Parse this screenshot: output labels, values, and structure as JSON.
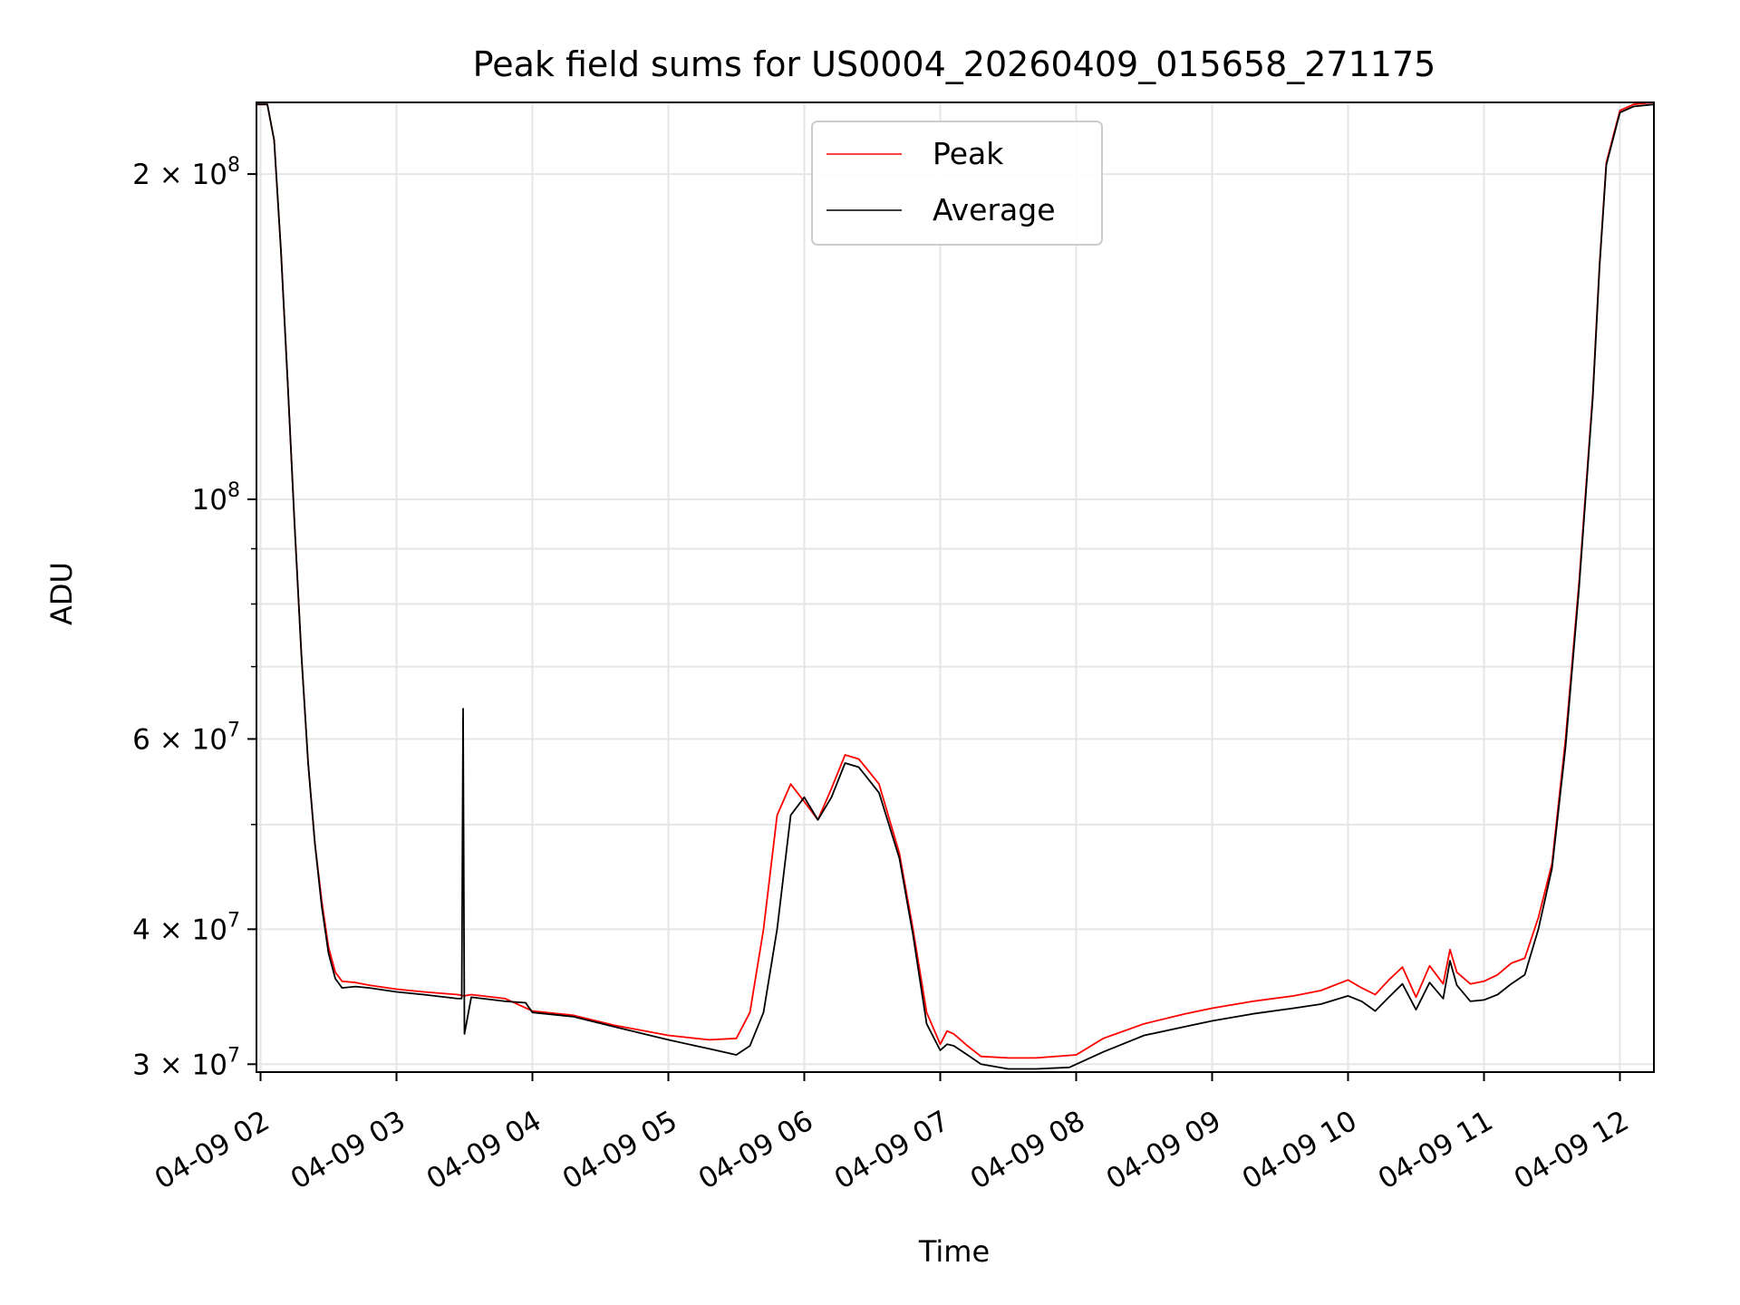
{
  "chart_data": {
    "type": "line",
    "title": "Peak field sums for US0004_20260409_015658_271175",
    "xlabel": "Time",
    "ylabel": "ADU",
    "yscale": "log",
    "xlim": [
      1.97,
      12.25
    ],
    "ylim": [
      29500000,
      233000000
    ],
    "x_ticks": [
      {
        "value": 2,
        "label": "04-09 02"
      },
      {
        "value": 3,
        "label": "04-09 03"
      },
      {
        "value": 4,
        "label": "04-09 04"
      },
      {
        "value": 5,
        "label": "04-09 05"
      },
      {
        "value": 6,
        "label": "04-09 06"
      },
      {
        "value": 7,
        "label": "04-09 07"
      },
      {
        "value": 8,
        "label": "04-09 08"
      },
      {
        "value": 9,
        "label": "04-09 09"
      },
      {
        "value": 10,
        "label": "04-09 10"
      },
      {
        "value": 11,
        "label": "04-09 11"
      },
      {
        "value": 12,
        "label": "04-09 12"
      }
    ],
    "y_ticks": [
      {
        "value": 30000000,
        "base": "3 × 10",
        "exp": "7"
      },
      {
        "value": 40000000,
        "base": "4 × 10",
        "exp": "7"
      },
      {
        "value": 60000000,
        "base": "6 × 10",
        "exp": "7"
      },
      {
        "value": 100000000,
        "base": "10",
        "exp": "8"
      },
      {
        "value": 200000000,
        "base": "2 × 10",
        "exp": "8"
      }
    ],
    "y_minor_ticks": [
      50000000,
      70000000,
      80000000,
      90000000
    ],
    "grid": true,
    "legend": {
      "placement": "top-center",
      "entries": [
        "Peak",
        "Average"
      ]
    },
    "series": [
      {
        "name": "Peak",
        "color": "#ff0000",
        "x": [
          1.97,
          2.05,
          2.1,
          2.15,
          2.2,
          2.25,
          2.3,
          2.35,
          2.4,
          2.45,
          2.5,
          2.55,
          2.6,
          2.7,
          2.8,
          3.0,
          3.2,
          3.45,
          3.5,
          3.55,
          3.8,
          4.0,
          4.3,
          4.6,
          5.0,
          5.3,
          5.5,
          5.6,
          5.7,
          5.8,
          5.9,
          6.0,
          6.1,
          6.2,
          6.3,
          6.4,
          6.45,
          6.55,
          6.7,
          6.8,
          6.9,
          7.0,
          7.05,
          7.1,
          7.2,
          7.3,
          7.5,
          7.7,
          8.0,
          8.2,
          8.5,
          8.8,
          9.0,
          9.3,
          9.6,
          9.8,
          10.0,
          10.1,
          10.2,
          10.3,
          10.4,
          10.5,
          10.6,
          10.7,
          10.75,
          10.8,
          10.9,
          11.0,
          11.1,
          11.2,
          11.3,
          11.4,
          11.5,
          11.6,
          11.7,
          11.8,
          11.85,
          11.9,
          12.0,
          12.1,
          12.25
        ],
        "y": [
          232000000,
          232000000,
          215000000,
          170000000,
          128000000,
          95000000,
          72000000,
          57000000,
          48000000,
          42500000,
          38500000,
          36500000,
          35800000,
          35700000,
          35500000,
          35200000,
          35000000,
          34800000,
          34700000,
          34800000,
          34500000,
          33600000,
          33300000,
          32600000,
          31900000,
          31600000,
          31700000,
          33500000,
          40000000,
          51000000,
          54500000,
          52500000,
          50500000,
          54000000,
          58000000,
          57500000,
          56500000,
          54500000,
          47000000,
          40000000,
          33500000,
          31300000,
          32200000,
          32000000,
          31200000,
          30500000,
          30400000,
          30400000,
          30600000,
          31700000,
          32700000,
          33400000,
          33800000,
          34300000,
          34700000,
          35100000,
          35900000,
          35300000,
          34800000,
          35900000,
          36900000,
          34600000,
          37000000,
          35600000,
          38300000,
          36500000,
          35600000,
          35800000,
          36300000,
          37200000,
          37600000,
          41000000,
          46000000,
          60000000,
          84000000,
          125000000,
          165000000,
          205000000,
          229000000,
          232000000,
          233000000
        ]
      },
      {
        "name": "Average",
        "color": "#000000",
        "x": [
          1.97,
          2.05,
          2.1,
          2.15,
          2.2,
          2.25,
          2.3,
          2.35,
          2.4,
          2.45,
          2.5,
          2.55,
          2.6,
          2.7,
          2.8,
          3.0,
          3.2,
          3.45,
          3.48,
          3.49,
          3.5,
          3.55,
          3.8,
          3.95,
          4.0,
          4.3,
          4.6,
          5.0,
          5.3,
          5.5,
          5.6,
          5.7,
          5.8,
          5.9,
          6.0,
          6.1,
          6.2,
          6.3,
          6.4,
          6.45,
          6.55,
          6.7,
          6.8,
          6.9,
          7.0,
          7.05,
          7.1,
          7.2,
          7.3,
          7.5,
          7.7,
          7.95,
          8.2,
          8.5,
          8.8,
          9.0,
          9.3,
          9.6,
          9.8,
          10.0,
          10.1,
          10.2,
          10.3,
          10.4,
          10.5,
          10.6,
          10.7,
          10.75,
          10.8,
          10.9,
          11.0,
          11.1,
          11.2,
          11.3,
          11.4,
          11.5,
          11.6,
          11.7,
          11.8,
          11.85,
          11.9,
          12.0,
          12.1,
          12.25
        ],
        "y": [
          232000000,
          232000000,
          215000000,
          170000000,
          128000000,
          95000000,
          72000000,
          57000000,
          48000000,
          42000000,
          38000000,
          36000000,
          35300000,
          35400000,
          35300000,
          35000000,
          34800000,
          34500000,
          34500000,
          64000000,
          32000000,
          34600000,
          34300000,
          34200000,
          33500000,
          33200000,
          32500000,
          31600000,
          31000000,
          30600000,
          31200000,
          33500000,
          40000000,
          51000000,
          53000000,
          50500000,
          53000000,
          57000000,
          56500000,
          55500000,
          53500000,
          46500000,
          39500000,
          32700000,
          30900000,
          31300000,
          31200000,
          30600000,
          30000000,
          29700000,
          29700000,
          29800000,
          30800000,
          31900000,
          32500000,
          32900000,
          33400000,
          33800000,
          34100000,
          34700000,
          34300000,
          33600000,
          34600000,
          35600000,
          33700000,
          35700000,
          34500000,
          37400000,
          35500000,
          34300000,
          34400000,
          34800000,
          35600000,
          36300000,
          40000000,
          45500000,
          59000000,
          83000000,
          124000000,
          164000000,
          204000000,
          228000000,
          231000000,
          232000000
        ]
      }
    ]
  }
}
